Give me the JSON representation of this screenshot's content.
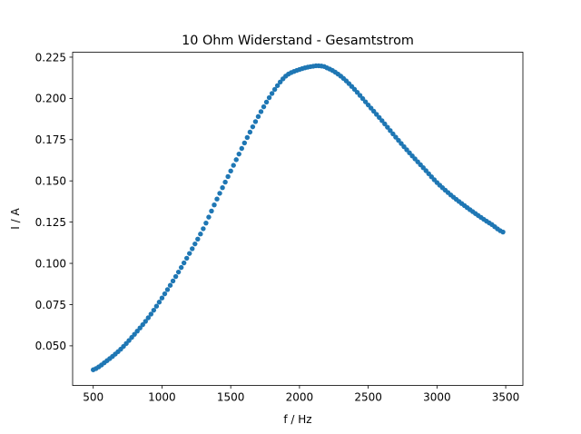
{
  "chart_data": {
    "type": "scatter",
    "title": "10 Ohm Widerstand - Gesamtstrom",
    "xlabel": "f / Hz",
    "ylabel": "I / A",
    "xlim": [
      350,
      3625
    ],
    "ylim": [
      0.026,
      0.228
    ],
    "xticks": [
      500,
      1000,
      1500,
      2000,
      2500,
      3000,
      3500
    ],
    "yticks": [
      0.05,
      0.075,
      0.1,
      0.125,
      0.15,
      0.175,
      0.2,
      0.225
    ],
    "ytick_labels": [
      "0.050",
      "0.075",
      "0.100",
      "0.125",
      "0.150",
      "0.175",
      "0.200",
      "0.225"
    ],
    "grid": false,
    "series_color": "#1f77b4",
    "series": [
      {
        "x_start": 500,
        "x_end": 3480,
        "x_step": 20,
        "curve_anchors": [
          [
            500,
            0.0355
          ],
          [
            600,
            0.041
          ],
          [
            700,
            0.048
          ],
          [
            800,
            0.057
          ],
          [
            900,
            0.067
          ],
          [
            1000,
            0.079
          ],
          [
            1100,
            0.092
          ],
          [
            1200,
            0.106
          ],
          [
            1300,
            0.121
          ],
          [
            1400,
            0.139
          ],
          [
            1500,
            0.156
          ],
          [
            1600,
            0.173
          ],
          [
            1700,
            0.189
          ],
          [
            1800,
            0.203
          ],
          [
            1900,
            0.2135
          ],
          [
            2000,
            0.2175
          ],
          [
            2100,
            0.2195
          ],
          [
            2150,
            0.2197
          ],
          [
            2200,
            0.2185
          ],
          [
            2300,
            0.2135
          ],
          [
            2400,
            0.2055
          ],
          [
            2500,
            0.196
          ],
          [
            2600,
            0.1865
          ],
          [
            2700,
            0.1765
          ],
          [
            2800,
            0.167
          ],
          [
            2900,
            0.158
          ],
          [
            3000,
            0.149
          ],
          [
            3100,
            0.1415
          ],
          [
            3200,
            0.135
          ],
          [
            3300,
            0.129
          ],
          [
            3400,
            0.1235
          ],
          [
            3480,
            0.119
          ]
        ]
      }
    ]
  }
}
